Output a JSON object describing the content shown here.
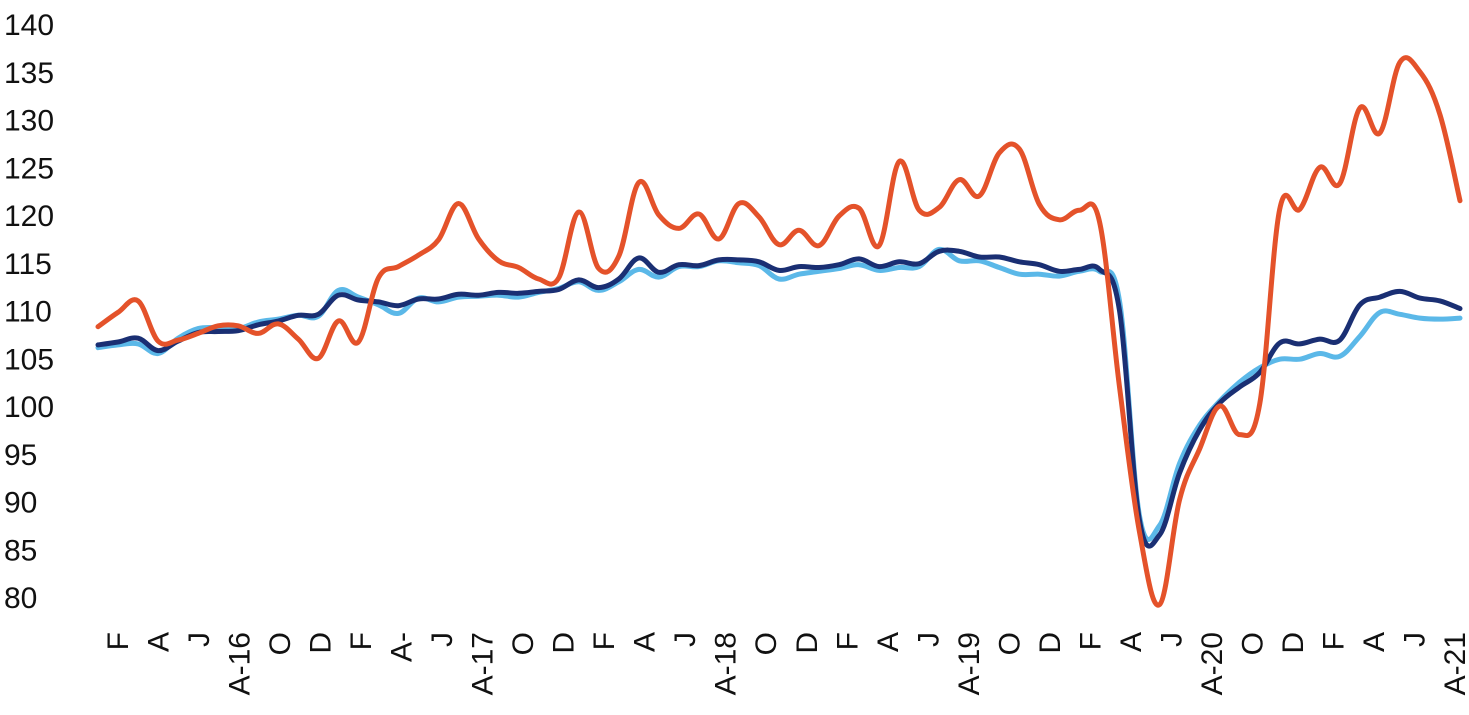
{
  "chart_data": {
    "type": "line",
    "title": "",
    "xlabel": "",
    "ylabel": "",
    "ylim": [
      80,
      140
    ],
    "yticks": [
      80,
      85,
      90,
      95,
      100,
      105,
      110,
      115,
      120,
      125,
      130,
      135,
      140
    ],
    "grid": false,
    "x_tick_labels": [
      "F",
      "A",
      "J",
      "A-16",
      "O",
      "D",
      "F",
      "A-",
      "J",
      "A-17",
      "O",
      "D",
      "F",
      "A",
      "J",
      "A-18",
      "O",
      "D",
      "F",
      "A",
      "J",
      "A-19",
      "O",
      "D",
      "F",
      "A",
      "J",
      "A-20",
      "O",
      "D",
      "F",
      "A",
      "J",
      "A-21"
    ],
    "series": [
      {
        "color": "#E4522A",
        "values": [
          108.3,
          109.8,
          111,
          106.8,
          106.9,
          107.6,
          108.4,
          108.4,
          107.6,
          108.6,
          107,
          105,
          108.9,
          106.7,
          113.4,
          114.6,
          115.8,
          117.4,
          121.2,
          117.5,
          115.2,
          114.5,
          113.3,
          113.4,
          120.3,
          114.4,
          115.7,
          123.4,
          120,
          118.6,
          120.1,
          117.5,
          121.2,
          119.8,
          116.9,
          118.4,
          116.8,
          119.9,
          120.7,
          116.8,
          125.6,
          120.5,
          120.8,
          123.7,
          122,
          126.5,
          126.9,
          121.1,
          119.5,
          120.5,
          119.3,
          102,
          86.8,
          79.2,
          90.2,
          95.5,
          100,
          97,
          100.2,
          120.6,
          120.6,
          125,
          123.3,
          131.2,
          128.6,
          136,
          135,
          130.5,
          121.5
        ]
      },
      {
        "color": "#1A2F73",
        "values": [
          106.4,
          106.7,
          107.1,
          105.8,
          106.8,
          107.7,
          107.8,
          107.9,
          108.5,
          108.9,
          109.5,
          109.6,
          111.6,
          111.1,
          110.9,
          110.5,
          111.2,
          111.2,
          111.7,
          111.6,
          111.9,
          111.8,
          112,
          112.2,
          113.2,
          112.4,
          113.3,
          115.5,
          114,
          114.8,
          114.7,
          115.3,
          115.3,
          115.1,
          114.2,
          114.6,
          114.5,
          114.8,
          115.4,
          114.6,
          115.1,
          114.9,
          116.2,
          116.2,
          115.6,
          115.6,
          115.1,
          114.8,
          114.1,
          114.3,
          114.3,
          110,
          88,
          86.5,
          93,
          97.5,
          100.3,
          102,
          103.5,
          106.6,
          106.5,
          107,
          106.9,
          110.6,
          111.4,
          112,
          111.3,
          111,
          110.2
        ]
      },
      {
        "color": "#5BB8E8",
        "values": [
          106.1,
          106.4,
          106.5,
          105.5,
          107.1,
          108.1,
          108.2,
          108.1,
          108.8,
          109.1,
          109.5,
          109.4,
          112.1,
          111.4,
          110.6,
          109.7,
          111.3,
          110.9,
          111.4,
          111.5,
          111.6,
          111.4,
          111.9,
          112.3,
          113,
          112.1,
          113,
          114.3,
          113.5,
          114.6,
          114.6,
          115.2,
          115,
          114.7,
          113.3,
          113.8,
          114.1,
          114.4,
          114.8,
          114.2,
          114.5,
          114.6,
          116.4,
          115.2,
          115.2,
          114.5,
          113.8,
          113.8,
          113.6,
          114.1,
          114.1,
          111,
          88.5,
          87.5,
          94,
          98,
          100.5,
          102.5,
          104,
          104.9,
          104.9,
          105.5,
          105.2,
          107.3,
          109.8,
          109.6,
          109.2,
          109.1,
          109.2
        ]
      }
    ]
  }
}
